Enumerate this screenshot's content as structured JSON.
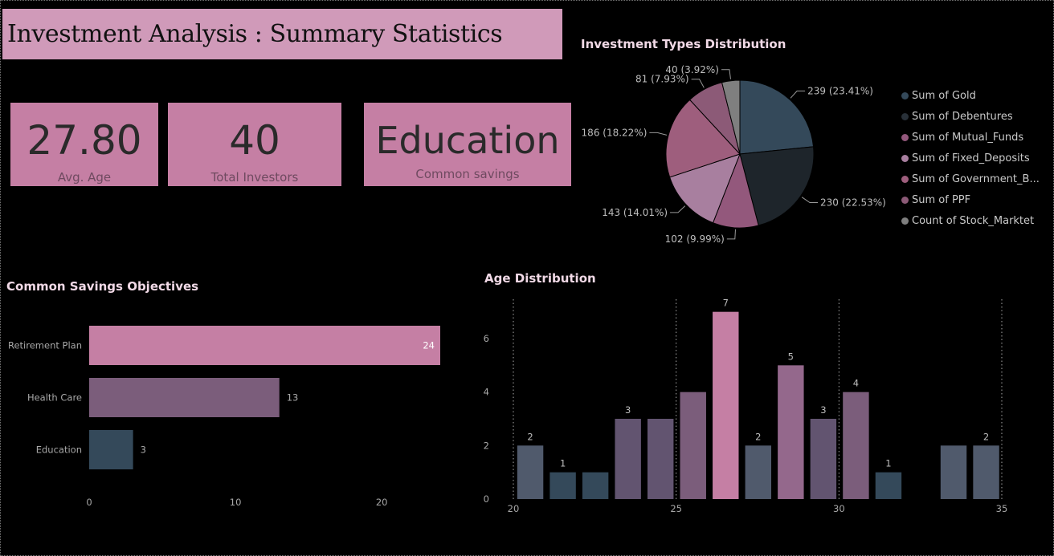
{
  "header": {
    "title": "Investment Analysis : Summary Statistics"
  },
  "cards": [
    {
      "value": "27.80",
      "label": "Avg. Age"
    },
    {
      "value": "40",
      "label": "Total Investors"
    },
    {
      "value": "Education",
      "label": "Common savings"
    }
  ],
  "chart_data": [
    {
      "type": "pie",
      "title": "Investment Types Distribution",
      "slices": [
        {
          "name": "Sum of Gold",
          "value": 239,
          "label": "239 (23.41%)",
          "color": "#34495a"
        },
        {
          "name": "Sum of Debentures",
          "value": 230,
          "label": "230 (22.53%)",
          "color": "#1e252b"
        },
        {
          "name": "Sum of Mutual_Funds",
          "value": 102,
          "label": "102 (9.99%)",
          "color": "#93587c"
        },
        {
          "name": "Sum of Fixed_Deposits",
          "value": 143,
          "label": "143 (14.01%)",
          "color": "#a87f9f"
        },
        {
          "name": "Sum of Government_B...",
          "value": 186,
          "label": "186 (18.22%)",
          "color": "#9e5e7d"
        },
        {
          "name": "Sum of PPF",
          "value": 81,
          "label": "81 (7.93%)",
          "color": "#8c5a77"
        },
        {
          "name": "Count of Stock_Marktet",
          "value": 40,
          "label": "40 (3.92%)",
          "color": "#7f7f7f"
        }
      ]
    },
    {
      "type": "bar",
      "orientation": "horizontal",
      "title": "Common Savings Objectives",
      "categories": [
        "Retirement Plan",
        "Health Care",
        "Education"
      ],
      "values": [
        24,
        13,
        3
      ],
      "colors": [
        "#c57fa4",
        "#7b5d7b",
        "#34495a"
      ],
      "xlim": [
        0,
        24
      ],
      "xticks": [
        0,
        10,
        20
      ]
    },
    {
      "type": "bar",
      "title": "Age Distribution",
      "x": [
        21,
        22,
        23,
        24,
        25,
        26,
        27,
        28,
        29,
        30,
        31,
        32,
        34,
        35
      ],
      "values": [
        2,
        1,
        1,
        3,
        3,
        4,
        7,
        2,
        5,
        3,
        4,
        1,
        2,
        2
      ],
      "data_labels": [
        "2",
        "1",
        "",
        "3",
        "",
        "",
        "7",
        "2",
        "5",
        "3",
        "4",
        "1",
        "",
        "2"
      ],
      "colors": [
        "#505a6c",
        "#34495a",
        "#34495a",
        "#625470",
        "#625470",
        "#7b5d7b",
        "#c57fa4",
        "#505a6c",
        "#94688c",
        "#625470",
        "#7b5d7b",
        "#34495a",
        "#505a6c",
        "#505a6c"
      ],
      "xlim": [
        20,
        35.4
      ],
      "ylim": [
        0,
        7.5
      ],
      "xticks": [
        20,
        25,
        30,
        35
      ],
      "yticks": [
        0,
        2,
        4,
        6
      ]
    }
  ]
}
